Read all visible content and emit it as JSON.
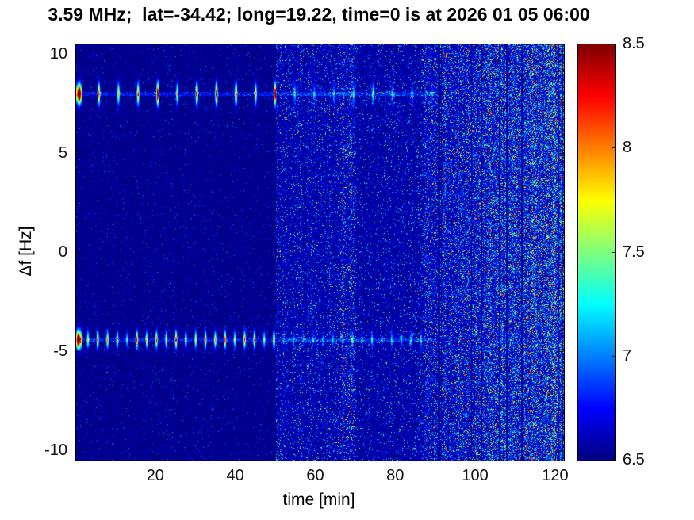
{
  "chart_data": {
    "type": "heatmap",
    "subtype": "spectrogram",
    "title": "3.59 MHz;  lat=-34.42; long=19.22, time=0 is at 2026 01 05 06:00",
    "xlabel": "time [min]",
    "ylabel": "Δf [Hz]",
    "xlim": [
      0,
      122
    ],
    "ylim": [
      -10.5,
      10.5
    ],
    "xticks": [
      20,
      40,
      60,
      80,
      100,
      120
    ],
    "yticks": [
      10,
      5,
      0,
      -5,
      -10
    ],
    "grid": false,
    "colorbar": {
      "position": "right",
      "min": 6.5,
      "max": 8.5,
      "ticks": [
        8.5,
        8,
        7.5,
        7,
        6.5
      ],
      "colormap": "jet"
    },
    "background_level": 6.5,
    "features": {
      "spectral_lines": [
        {
          "freq_hz": 8.0,
          "pulse_t0_min": 0.8,
          "pulse_period_min": 4.9,
          "pulse_amplitude": 1.7,
          "pulse_sigma_t_min": 0.2,
          "pulse_sigma_f_hz": 0.36,
          "strong_until_min": 50
        },
        {
          "freq_hz": -4.4,
          "pulse_t0_min": 0.5,
          "pulse_period_min": 2.45,
          "pulse_amplitude": 1.25,
          "pulse_sigma_t_min": 0.18,
          "pulse_sigma_f_hz": 0.28,
          "strong_until_min": 50
        }
      ],
      "noise_segments": [
        {
          "t_start": 0,
          "t_end": 50,
          "level_start": 0.05,
          "level_end": 0.05
        },
        {
          "t_start": 50,
          "t_end": 66,
          "level_start": 0.17,
          "level_end": 0.17
        },
        {
          "t_start": 66,
          "t_end": 70,
          "level_start": 0.24,
          "level_end": 0.24
        },
        {
          "t_start": 70,
          "t_end": 87,
          "level_start": 0.13,
          "level_end": 0.16
        },
        {
          "t_start": 87,
          "t_end": 95,
          "level_start": 0.26,
          "level_end": 0.3
        },
        {
          "t_start": 95,
          "t_end": 122,
          "level_start": 0.32,
          "level_end": 0.6
        }
      ]
    }
  }
}
